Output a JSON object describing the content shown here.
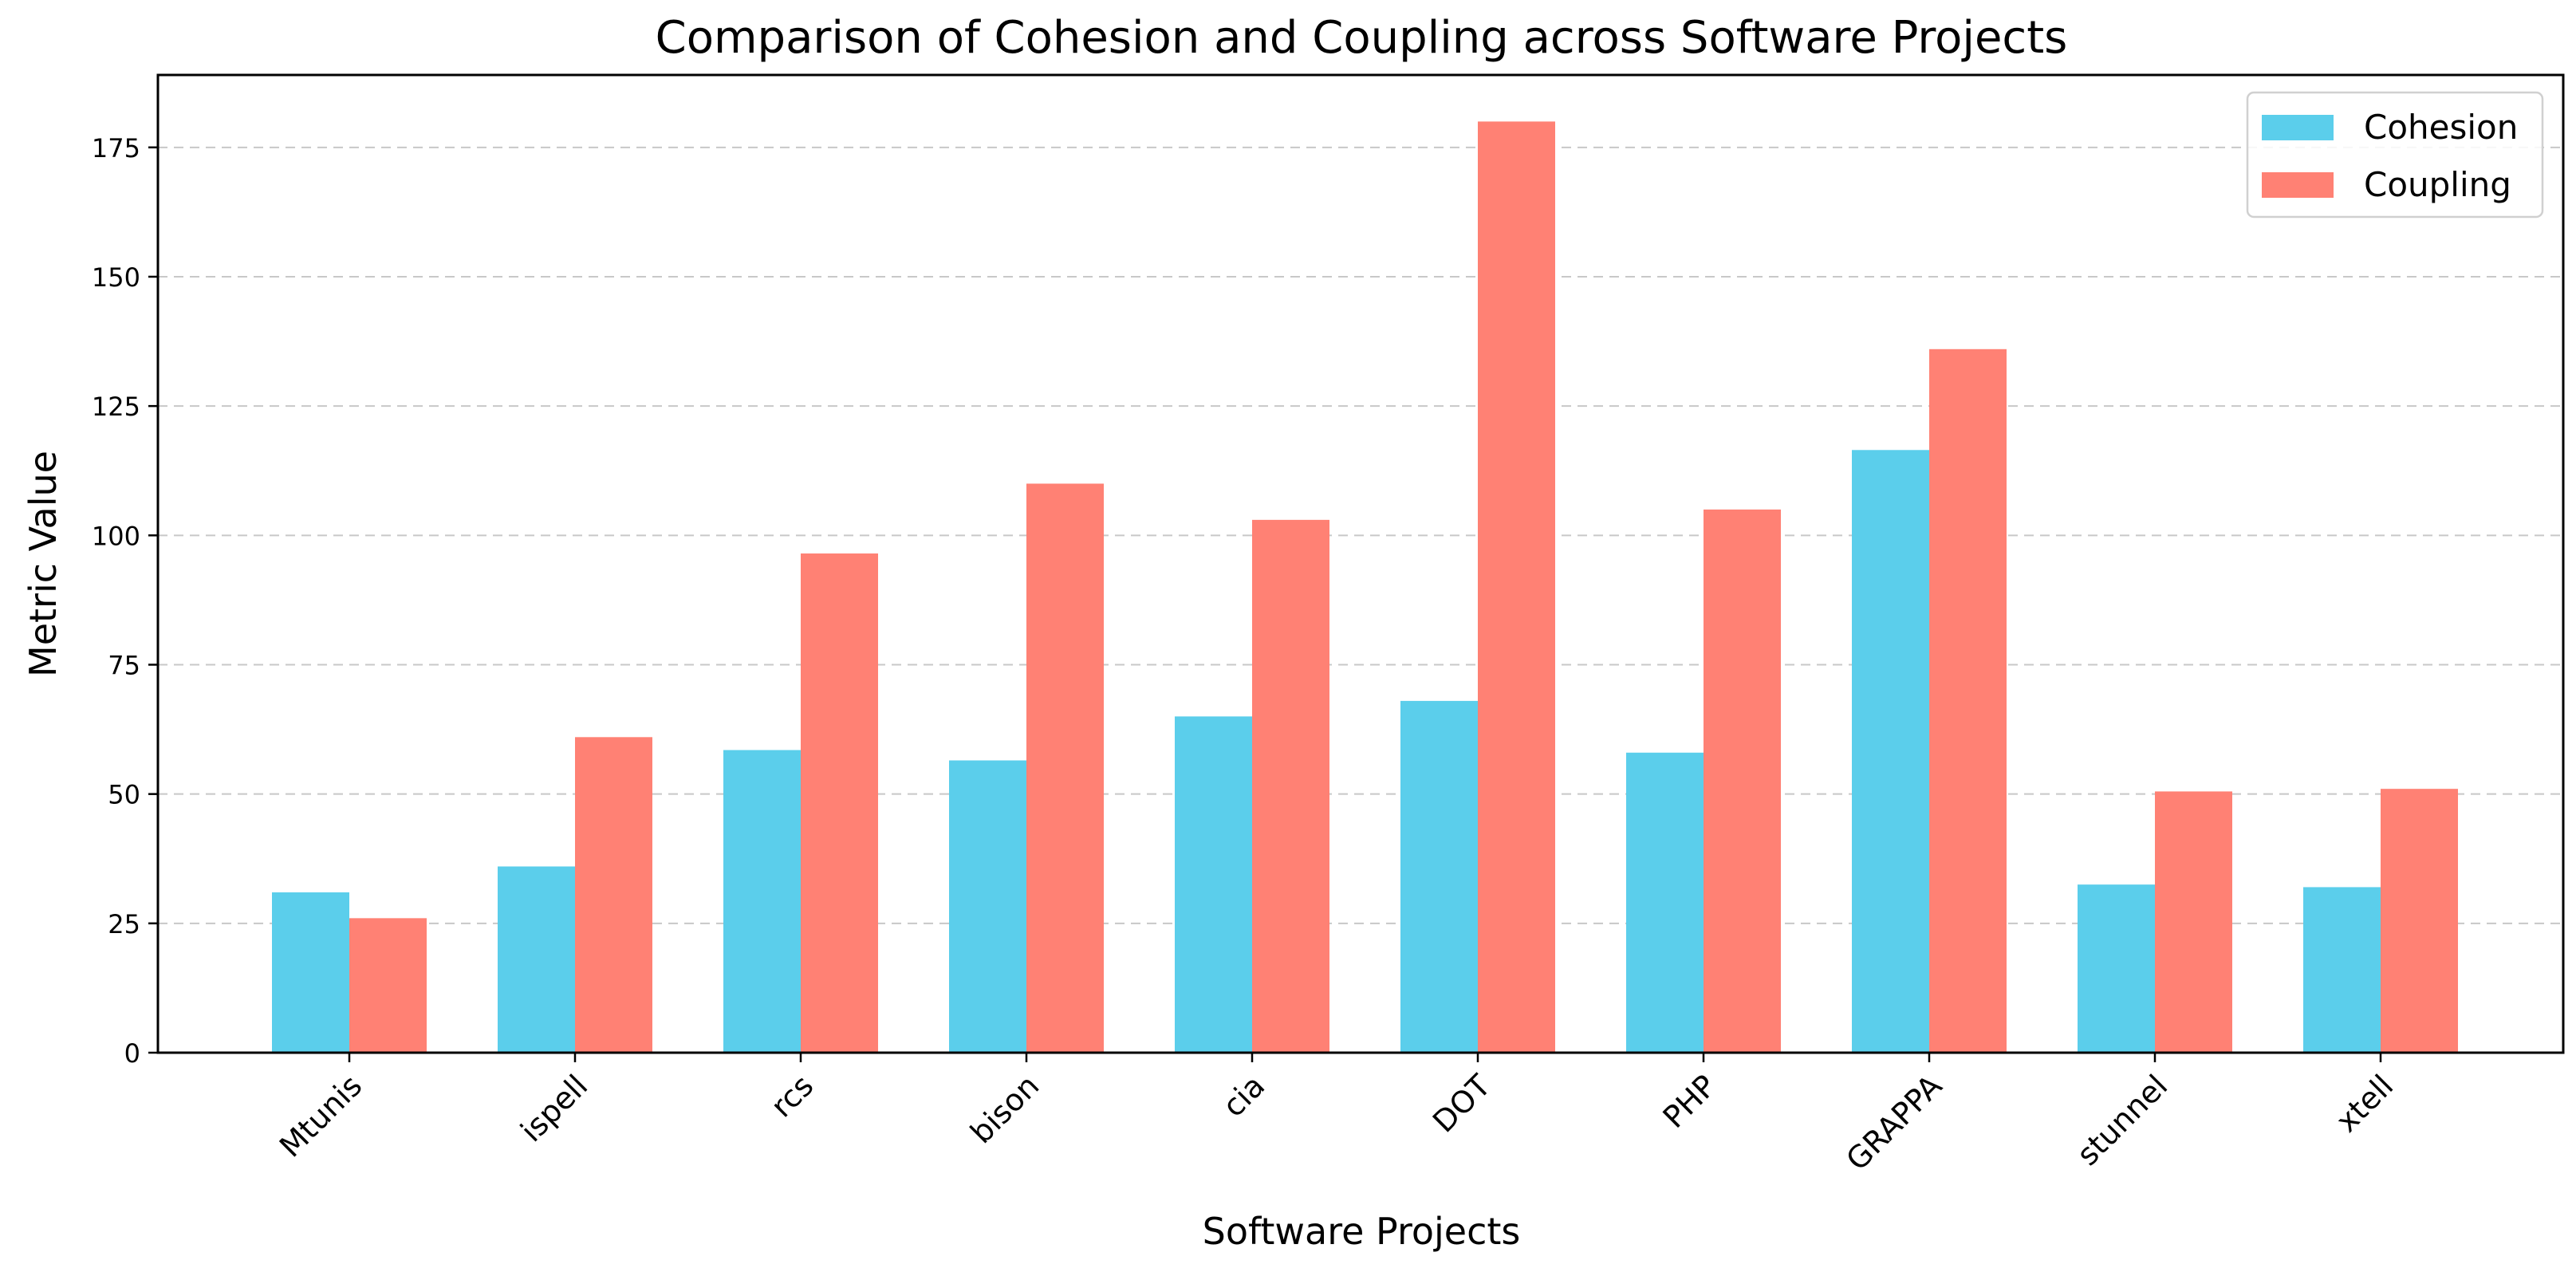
{
  "chart_data": {
    "type": "bar",
    "title": "Comparison of Cohesion and Coupling across Software Projects",
    "xlabel": "Software Projects",
    "ylabel": "Metric Value",
    "categories": [
      "Mtunis",
      "ispell",
      "rcs",
      "bison",
      "cia",
      "DOT",
      "PHP",
      "GRAPPA",
      "stunnel",
      "xtell"
    ],
    "series": [
      {
        "name": "Cohesion",
        "color": "#5BCEEB",
        "values": [
          31,
          36,
          58.5,
          56.5,
          65,
          68,
          58,
          116.5,
          32.5,
          32
        ]
      },
      {
        "name": "Coupling",
        "color": "#FF8174",
        "values": [
          26,
          61,
          96.5,
          110,
          103,
          180,
          105,
          136,
          50.5,
          51
        ]
      }
    ],
    "ylim": [
      0,
      189
    ],
    "yticks": [
      0,
      25,
      50,
      75,
      100,
      125,
      150,
      175
    ],
    "grid": "horizontal-dashed",
    "legend_position": "top-right"
  }
}
